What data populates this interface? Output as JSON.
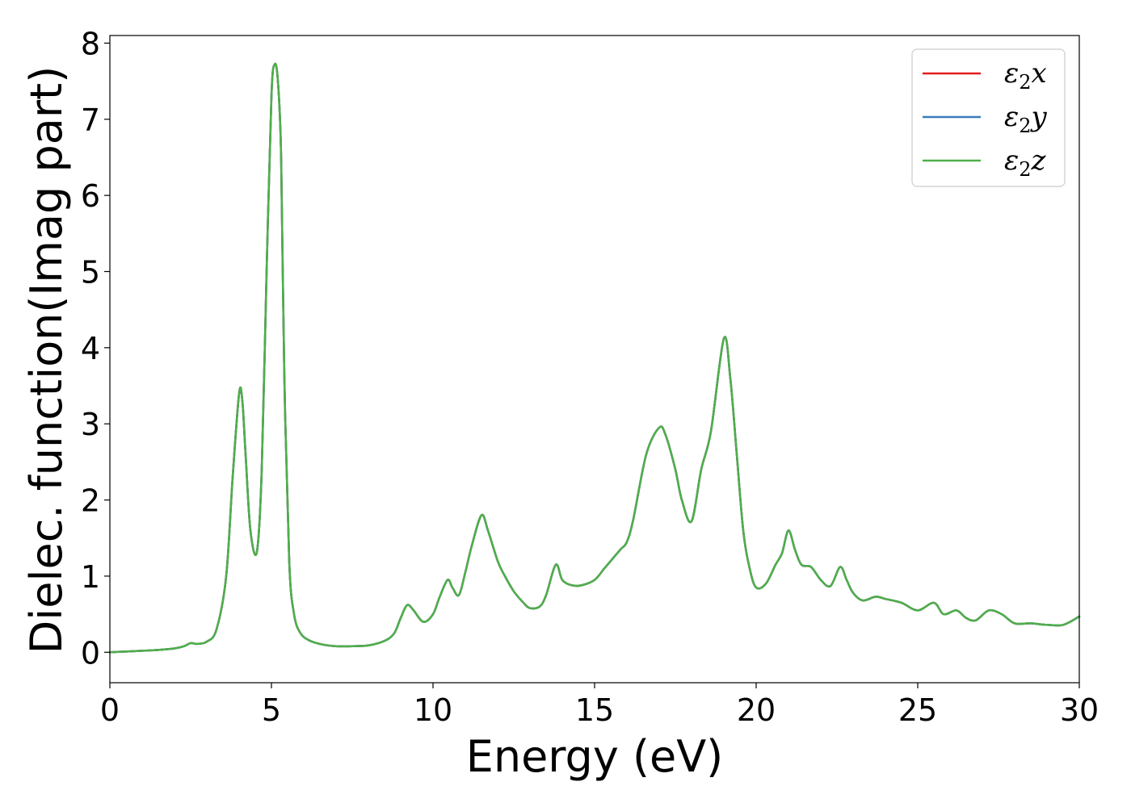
{
  "chart_data": {
    "type": "line",
    "xlabel": "Energy (eV)",
    "ylabel": "Dielec. function(Imag part)",
    "xlim": [
      0,
      30
    ],
    "ylim": [
      -0.4,
      8.1
    ],
    "xticks": [
      "0",
      "5",
      "10",
      "15",
      "20",
      "25",
      "30"
    ],
    "yticks": [
      "0",
      "1",
      "2",
      "3",
      "4",
      "5",
      "6",
      "7",
      "8"
    ],
    "grid": false,
    "legend_position": "top-right",
    "series": [
      {
        "name": "ε₂x",
        "sym": "ε",
        "sub": "2",
        "axis": "x",
        "color": "#e41a1c",
        "x": [
          0,
          0.5,
          1,
          1.5,
          2,
          2.3,
          2.5,
          2.7,
          3,
          3.3,
          3.6,
          3.8,
          4,
          4.1,
          4.2,
          4.35,
          4.55,
          4.7,
          4.85,
          5,
          5.1,
          5.2,
          5.3,
          5.4,
          5.55,
          5.7,
          5.9,
          6.2,
          6.6,
          7,
          7.5,
          8,
          8.5,
          8.8,
          9,
          9.2,
          9.4,
          9.7,
          10,
          10.2,
          10.45,
          10.6,
          10.8,
          11,
          11.2,
          11.5,
          11.7,
          12,
          12.2,
          12.5,
          12.8,
          13,
          13.3,
          13.5,
          13.8,
          14,
          14.3,
          14.6,
          15,
          15.3,
          15.5,
          15.8,
          16,
          16.2,
          16.6,
          17,
          17.2,
          17.5,
          17.7,
          18,
          18.3,
          18.6,
          19,
          19.2,
          19.4,
          19.6,
          19.8,
          20,
          20.3,
          20.6,
          20.8,
          21,
          21.2,
          21.4,
          21.7,
          22,
          22.3,
          22.6,
          22.8,
          23,
          23.3,
          23.7,
          24,
          24.5,
          25,
          25.5,
          25.8,
          26.2,
          26.5,
          26.8,
          27.2,
          27.6,
          28,
          28.5,
          29,
          29.5,
          30
        ],
        "y": [
          0,
          0.01,
          0.02,
          0.03,
          0.05,
          0.08,
          0.12,
          0.11,
          0.14,
          0.3,
          1,
          2.3,
          3.4,
          3.3,
          2.6,
          1.6,
          1.32,
          2.4,
          5,
          7.3,
          7.72,
          7.5,
          6.5,
          3.6,
          1.2,
          0.5,
          0.25,
          0.15,
          0.1,
          0.08,
          0.08,
          0.09,
          0.15,
          0.25,
          0.45,
          0.62,
          0.55,
          0.4,
          0.5,
          0.72,
          0.95,
          0.85,
          0.75,
          1.05,
          1.4,
          1.8,
          1.6,
          1.2,
          1.02,
          0.8,
          0.65,
          0.58,
          0.6,
          0.75,
          1.15,
          0.95,
          0.88,
          0.88,
          0.95,
          1.1,
          1.2,
          1.35,
          1.45,
          1.75,
          2.6,
          2.95,
          2.85,
          2.4,
          2,
          1.72,
          2.4,
          2.9,
          4.12,
          3.6,
          2.6,
          1.6,
          1.1,
          0.85,
          0.9,
          1.15,
          1.3,
          1.6,
          1.35,
          1.15,
          1.12,
          0.95,
          0.87,
          1.12,
          0.95,
          0.78,
          0.68,
          0.73,
          0.7,
          0.65,
          0.55,
          0.65,
          0.5,
          0.55,
          0.45,
          0.42,
          0.55,
          0.5,
          0.38,
          0.38,
          0.36,
          0.36,
          0.47
        ]
      },
      {
        "name": "ε₂y",
        "sym": "ε",
        "sub": "2",
        "axis": "y",
        "color": "#377eb8",
        "x": [
          0,
          0.5,
          1,
          1.5,
          2,
          2.3,
          2.5,
          2.7,
          3,
          3.3,
          3.6,
          3.8,
          4,
          4.1,
          4.2,
          4.35,
          4.55,
          4.7,
          4.85,
          5,
          5.1,
          5.2,
          5.3,
          5.4,
          5.55,
          5.7,
          5.9,
          6.2,
          6.6,
          7,
          7.5,
          8,
          8.5,
          8.8,
          9,
          9.2,
          9.4,
          9.7,
          10,
          10.2,
          10.45,
          10.6,
          10.8,
          11,
          11.2,
          11.5,
          11.7,
          12,
          12.2,
          12.5,
          12.8,
          13,
          13.3,
          13.5,
          13.8,
          14,
          14.3,
          14.6,
          15,
          15.3,
          15.5,
          15.8,
          16,
          16.2,
          16.6,
          17,
          17.2,
          17.5,
          17.7,
          18,
          18.3,
          18.6,
          19,
          19.2,
          19.4,
          19.6,
          19.8,
          20,
          20.3,
          20.6,
          20.8,
          21,
          21.2,
          21.4,
          21.7,
          22,
          22.3,
          22.6,
          22.8,
          23,
          23.3,
          23.7,
          24,
          24.5,
          25,
          25.5,
          25.8,
          26.2,
          26.5,
          26.8,
          27.2,
          27.6,
          28,
          28.5,
          29,
          29.5,
          30
        ],
        "y": [
          0,
          0.01,
          0.02,
          0.03,
          0.05,
          0.08,
          0.12,
          0.11,
          0.14,
          0.3,
          1,
          2.3,
          3.4,
          3.3,
          2.6,
          1.6,
          1.32,
          2.4,
          5,
          7.3,
          7.72,
          7.5,
          6.5,
          3.6,
          1.2,
          0.5,
          0.25,
          0.15,
          0.1,
          0.08,
          0.08,
          0.09,
          0.15,
          0.25,
          0.45,
          0.62,
          0.55,
          0.4,
          0.5,
          0.72,
          0.95,
          0.85,
          0.75,
          1.05,
          1.4,
          1.8,
          1.6,
          1.2,
          1.02,
          0.8,
          0.65,
          0.58,
          0.6,
          0.75,
          1.15,
          0.95,
          0.88,
          0.88,
          0.95,
          1.1,
          1.2,
          1.35,
          1.45,
          1.75,
          2.6,
          2.95,
          2.85,
          2.4,
          2,
          1.72,
          2.4,
          2.9,
          4.12,
          3.6,
          2.6,
          1.6,
          1.1,
          0.85,
          0.9,
          1.15,
          1.3,
          1.6,
          1.35,
          1.15,
          1.12,
          0.95,
          0.87,
          1.12,
          0.95,
          0.78,
          0.68,
          0.73,
          0.7,
          0.65,
          0.55,
          0.65,
          0.5,
          0.55,
          0.45,
          0.42,
          0.55,
          0.5,
          0.38,
          0.38,
          0.36,
          0.36,
          0.47
        ]
      },
      {
        "name": "ε₂z",
        "sym": "ε",
        "sub": "2",
        "axis": "z",
        "color": "#4daf4a",
        "x": [
          0,
          0.5,
          1,
          1.5,
          2,
          2.3,
          2.5,
          2.7,
          3,
          3.3,
          3.6,
          3.8,
          4,
          4.1,
          4.2,
          4.35,
          4.55,
          4.7,
          4.85,
          5,
          5.1,
          5.2,
          5.3,
          5.4,
          5.55,
          5.7,
          5.9,
          6.2,
          6.6,
          7,
          7.5,
          8,
          8.5,
          8.8,
          9,
          9.2,
          9.4,
          9.7,
          10,
          10.2,
          10.45,
          10.6,
          10.8,
          11,
          11.2,
          11.5,
          11.7,
          12,
          12.2,
          12.5,
          12.8,
          13,
          13.3,
          13.5,
          13.8,
          14,
          14.3,
          14.6,
          15,
          15.3,
          15.5,
          15.8,
          16,
          16.2,
          16.6,
          17,
          17.2,
          17.5,
          17.7,
          18,
          18.3,
          18.6,
          19,
          19.2,
          19.4,
          19.6,
          19.8,
          20,
          20.3,
          20.6,
          20.8,
          21,
          21.2,
          21.4,
          21.7,
          22,
          22.3,
          22.6,
          22.8,
          23,
          23.3,
          23.7,
          24,
          24.5,
          25,
          25.5,
          25.8,
          26.2,
          26.5,
          26.8,
          27.2,
          27.6,
          28,
          28.5,
          29,
          29.5,
          30
        ],
        "y": [
          0,
          0.01,
          0.02,
          0.03,
          0.05,
          0.08,
          0.12,
          0.11,
          0.14,
          0.3,
          1,
          2.3,
          3.4,
          3.3,
          2.6,
          1.6,
          1.32,
          2.4,
          5,
          7.3,
          7.72,
          7.5,
          6.5,
          3.6,
          1.2,
          0.5,
          0.25,
          0.15,
          0.1,
          0.08,
          0.08,
          0.09,
          0.15,
          0.25,
          0.45,
          0.62,
          0.55,
          0.4,
          0.5,
          0.72,
          0.95,
          0.85,
          0.75,
          1.05,
          1.4,
          1.8,
          1.6,
          1.2,
          1.02,
          0.8,
          0.65,
          0.58,
          0.6,
          0.75,
          1.15,
          0.95,
          0.88,
          0.88,
          0.95,
          1.1,
          1.2,
          1.35,
          1.45,
          1.75,
          2.6,
          2.95,
          2.85,
          2.4,
          2,
          1.72,
          2.4,
          2.9,
          4.12,
          3.6,
          2.6,
          1.6,
          1.1,
          0.85,
          0.9,
          1.15,
          1.3,
          1.6,
          1.35,
          1.15,
          1.12,
          0.95,
          0.87,
          1.12,
          0.95,
          0.78,
          0.68,
          0.73,
          0.7,
          0.65,
          0.55,
          0.65,
          0.5,
          0.55,
          0.45,
          0.42,
          0.55,
          0.5,
          0.38,
          0.38,
          0.36,
          0.36,
          0.47
        ]
      }
    ]
  }
}
